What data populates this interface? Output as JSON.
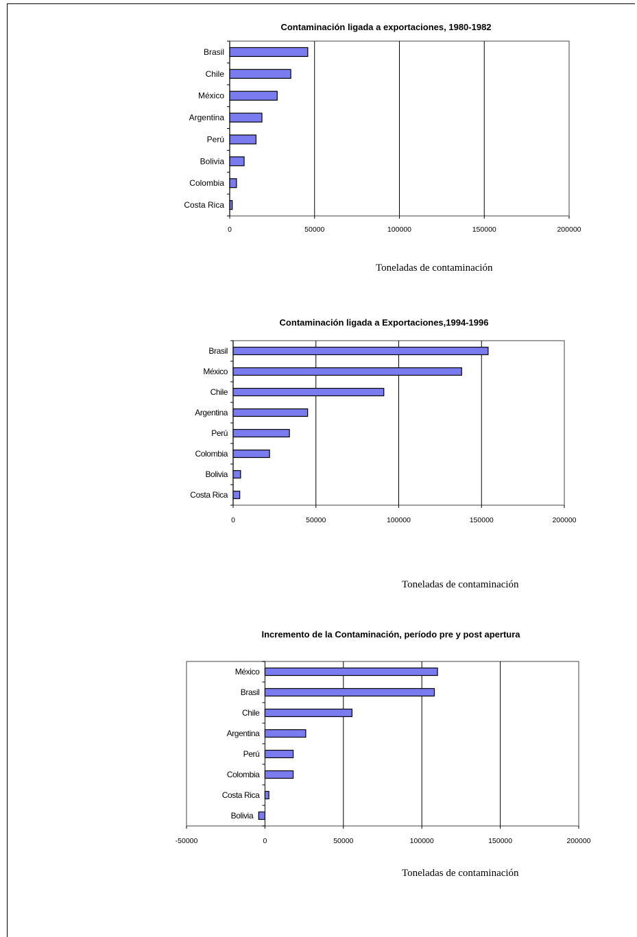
{
  "chart_data": [
    {
      "type": "bar",
      "orientation": "horizontal",
      "title": "Contaminación ligada a exportaciones, 1980-1982",
      "xlabel": "Toneladas de contaminación",
      "ylabel": "",
      "categories": [
        "Brasil",
        "Chile",
        "México",
        "Argentina",
        "Perú",
        "Bolivia",
        "Colombia",
        "Costa Rica"
      ],
      "values": [
        46000,
        36000,
        28000,
        19000,
        15500,
        8500,
        4000,
        1500
      ],
      "xlim": [
        0,
        200000
      ],
      "xticks": [
        "0",
        "50000",
        "100000",
        "150000",
        "200000"
      ],
      "grid": true,
      "bar_color": "#7b7bf0"
    },
    {
      "type": "bar",
      "orientation": "horizontal",
      "title": "Contaminación ligada a Exportaciones,1994-1996",
      "xlabel": "Toneladas de contaminación",
      "ylabel": "",
      "categories": [
        "Brasil",
        "México",
        "Chile",
        "Argentina",
        "Perú",
        "Colombia",
        "Bolivia",
        "Costa Rica"
      ],
      "values": [
        154000,
        138000,
        91000,
        45000,
        34000,
        22000,
        4500,
        4000
      ],
      "xlim": [
        0,
        200000
      ],
      "xticks": [
        "0",
        "50000",
        "100000",
        "150000",
        "200000"
      ],
      "grid": true,
      "bar_color": "#7b7bf0"
    },
    {
      "type": "bar",
      "orientation": "horizontal",
      "title": "Incremento de la Contaminación, período pre y post apertura",
      "xlabel": "Toneladas de contaminación",
      "ylabel": "",
      "categories": [
        "México",
        "Brasil",
        "Chile",
        "Argentina",
        "Perú",
        "Colombia",
        "Costa Rica",
        "Bolivia"
      ],
      "values": [
        110000,
        108000,
        55500,
        26000,
        18000,
        18000,
        2500,
        -4000
      ],
      "xlim": [
        -50000,
        200000
      ],
      "xticks": [
        "-50000",
        "0",
        "50000",
        "100000",
        "150000",
        "200000"
      ],
      "grid": true,
      "bar_color": "#7b7bf0"
    }
  ]
}
